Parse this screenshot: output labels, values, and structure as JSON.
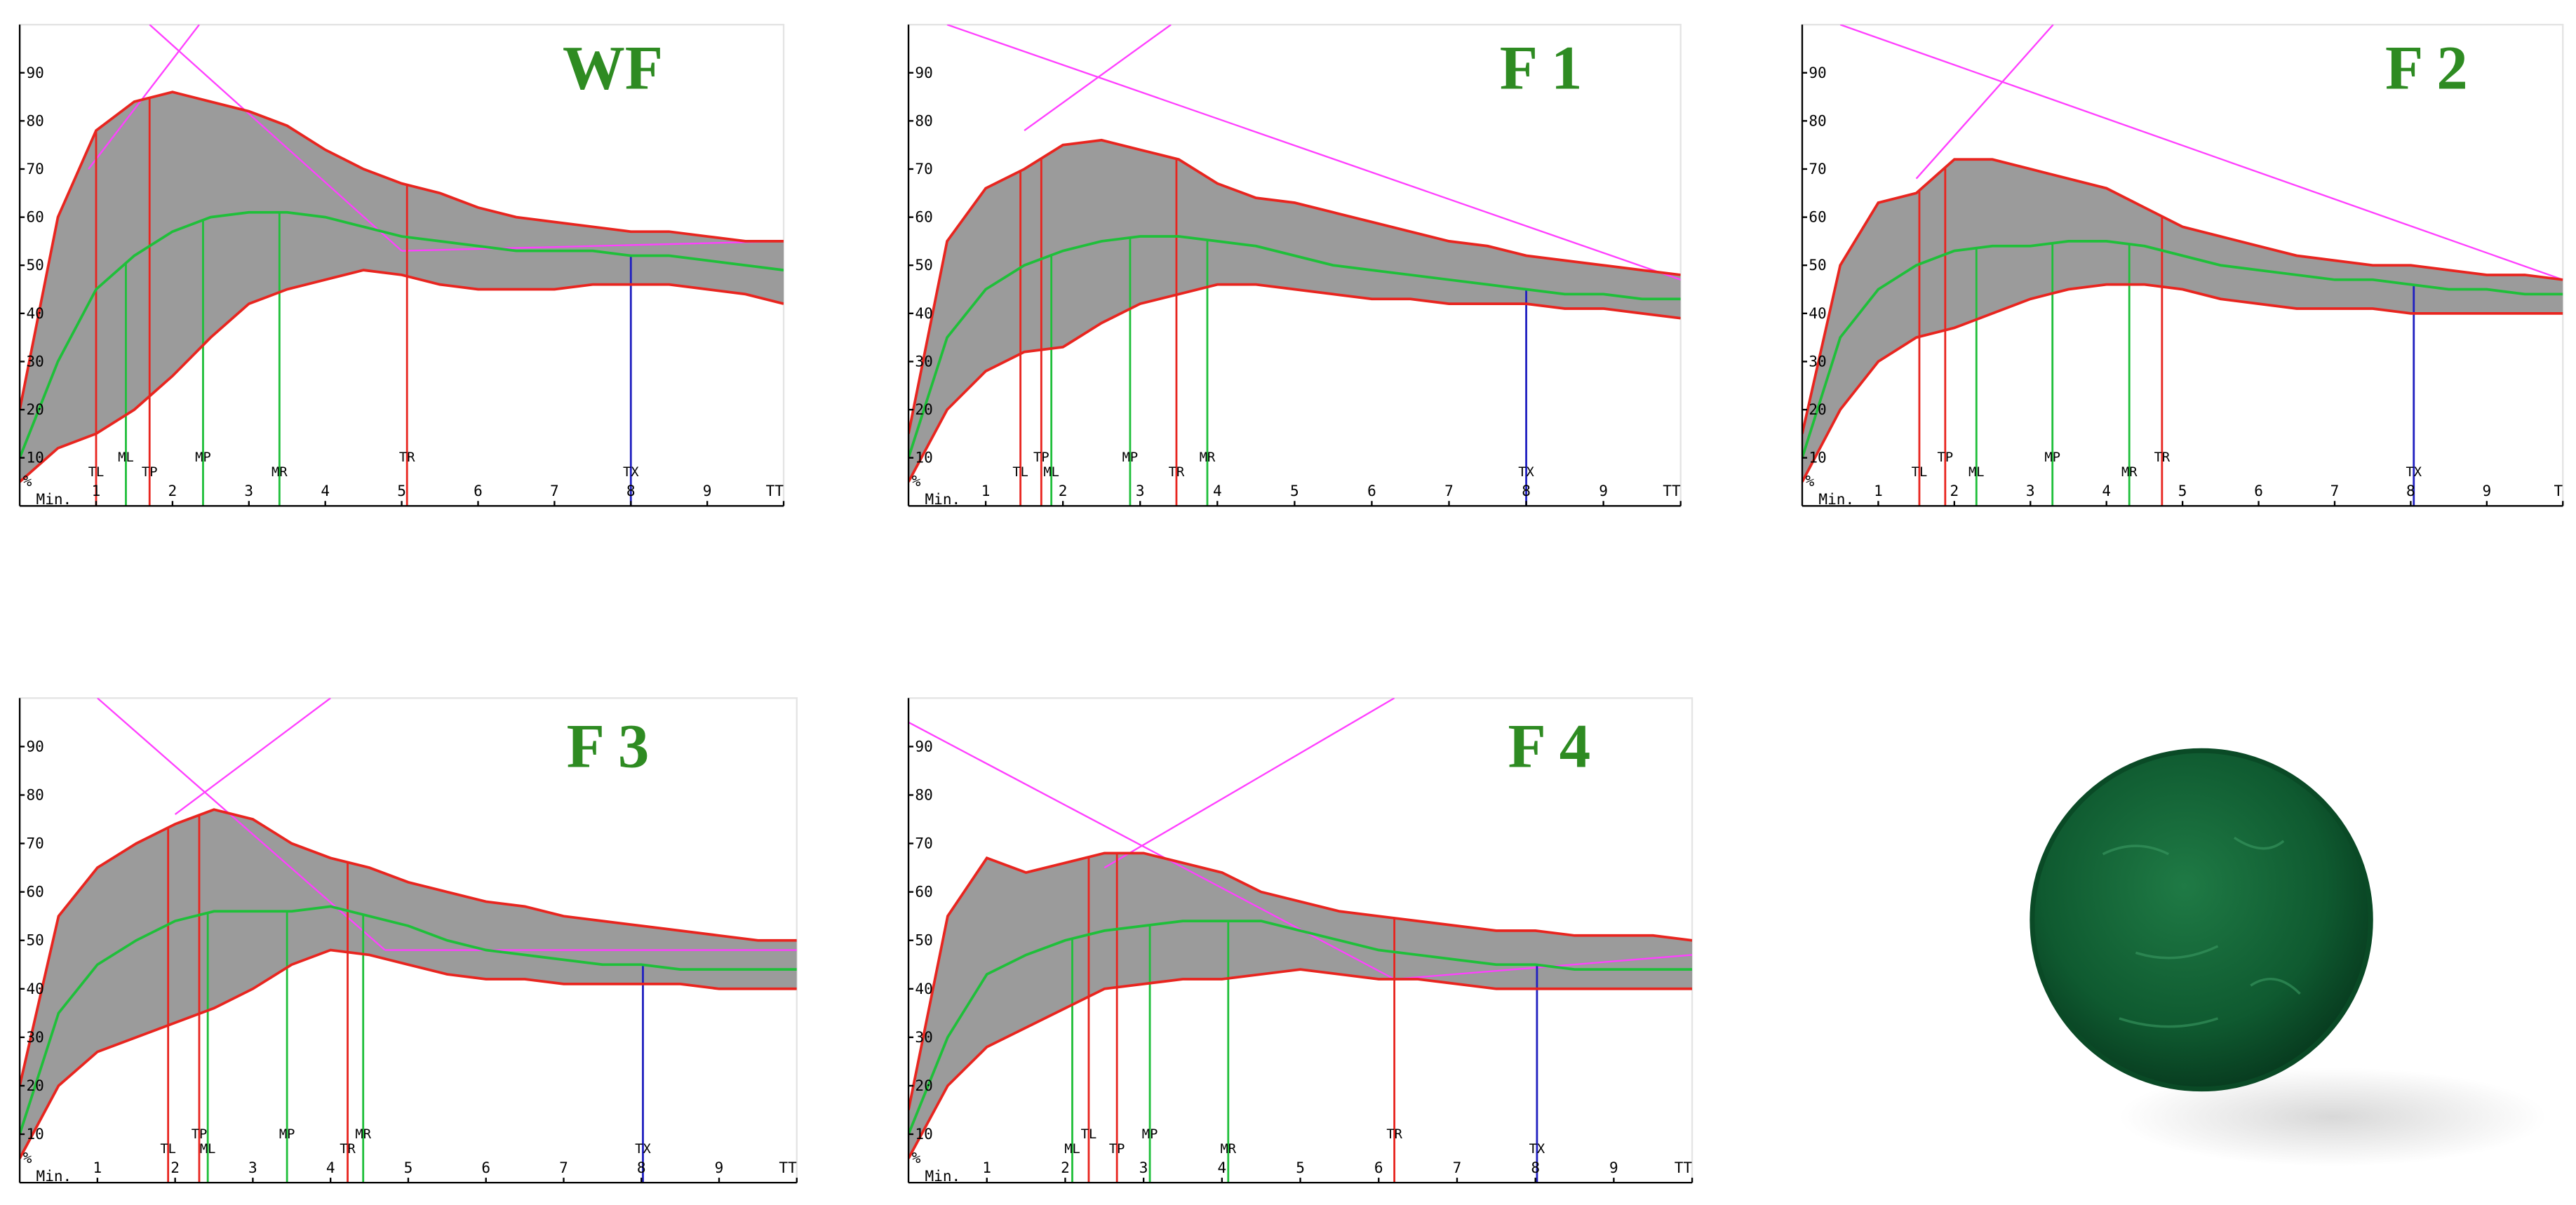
{
  "chart_data": [
    {
      "type": "line",
      "title": "WF",
      "x_label": "Min.",
      "y_label": "%",
      "xlim": [
        0,
        10
      ],
      "ylim": [
        0,
        100
      ],
      "xticks": [
        1,
        2,
        3,
        4,
        5,
        6,
        7,
        8,
        9,
        {
          "value": 10,
          "label": "TT"
        }
      ],
      "yticks": [
        10,
        20,
        30,
        40,
        50,
        60,
        70,
        80,
        90
      ],
      "x": [
        0,
        0.5,
        1,
        1.5,
        2,
        2.5,
        3,
        3.5,
        4,
        4.5,
        5,
        5.5,
        6,
        6.5,
        7,
        7.5,
        8,
        8.5,
        9,
        9.5,
        10
      ],
      "series": [
        {
          "color": "#e8251f",
          "values": [
            20,
            60,
            78,
            84,
            86,
            84,
            82,
            79,
            74,
            70,
            67,
            65,
            62,
            60,
            59,
            58,
            57,
            57,
            56,
            55,
            55
          ]
        },
        {
          "color": "#1fbf3a",
          "values": [
            10,
            30,
            45,
            52,
            57,
            60,
            61,
            61,
            60,
            58,
            56,
            55,
            54,
            53,
            53,
            53,
            52,
            52,
            51,
            50,
            49
          ]
        },
        {
          "color": "#e8251f",
          "values": [
            5,
            12,
            15,
            20,
            27,
            35,
            42,
            45,
            47,
            49,
            48,
            46,
            45,
            45,
            45,
            46,
            46,
            46,
            45,
            44,
            42
          ]
        }
      ],
      "trend_lines": [
        {
          "x": [
            1.7,
            5
          ],
          "y": [
            100,
            53
          ]
        },
        {
          "x": [
            5,
            10
          ],
          "y": [
            53,
            55
          ]
        },
        {
          "x": [
            0.9,
            2.35
          ],
          "y": [
            70,
            100
          ]
        }
      ],
      "markers": [
        {
          "label": "TL",
          "x": 1.0,
          "color": "#e8251f"
        },
        {
          "label": "ML",
          "x": 1.39,
          "color": "#1fbf3a"
        },
        {
          "label": "TP",
          "x": 1.7,
          "color": "#e8251f"
        },
        {
          "label": "MP",
          "x": 2.4,
          "color": "#1fbf3a"
        },
        {
          "label": "MR",
          "x": 3.4,
          "color": "#1fbf3a"
        },
        {
          "label": "TR",
          "x": 5.07,
          "color": "#e8251f"
        },
        {
          "label": "TX",
          "x": 8.0,
          "color": "#2020c0"
        }
      ]
    },
    {
      "type": "line",
      "title": "F 1",
      "x_label": "Min.",
      "y_label": "%",
      "xlim": [
        0,
        10
      ],
      "ylim": [
        0,
        100
      ],
      "xticks": [
        1,
        2,
        3,
        4,
        5,
        6,
        7,
        8,
        9,
        {
          "value": 10,
          "label": "TT"
        }
      ],
      "yticks": [
        10,
        20,
        30,
        40,
        50,
        60,
        70,
        80,
        90
      ],
      "x": [
        0,
        0.5,
        1,
        1.5,
        2,
        2.5,
        3,
        3.5,
        4,
        4.5,
        5,
        5.5,
        6,
        6.5,
        7,
        7.5,
        8,
        8.5,
        9,
        9.5,
        10
      ],
      "series": [
        {
          "color": "#e8251f",
          "values": [
            15,
            55,
            66,
            70,
            75,
            76,
            74,
            72,
            67,
            64,
            63,
            61,
            59,
            57,
            55,
            54,
            52,
            51,
            50,
            49,
            48
          ]
        },
        {
          "color": "#1fbf3a",
          "values": [
            10,
            35,
            45,
            50,
            53,
            55,
            56,
            56,
            55,
            54,
            52,
            50,
            49,
            48,
            47,
            46,
            45,
            44,
            44,
            43,
            43
          ]
        },
        {
          "color": "#e8251f",
          "values": [
            5,
            20,
            28,
            32,
            33,
            38,
            42,
            44,
            46,
            46,
            45,
            44,
            43,
            43,
            42,
            42,
            42,
            41,
            41,
            40,
            39
          ]
        }
      ],
      "trend_lines": [
        {
          "x": [
            0.5,
            10
          ],
          "y": [
            100,
            47
          ]
        },
        {
          "x": [
            1.5,
            3.4
          ],
          "y": [
            78,
            100
          ]
        }
      ],
      "markers": [
        {
          "label": "TL",
          "x": 1.45,
          "color": "#e8251f"
        },
        {
          "label": "TP",
          "x": 1.72,
          "color": "#e8251f"
        },
        {
          "label": "ML",
          "x": 1.85,
          "color": "#1fbf3a"
        },
        {
          "label": "MP",
          "x": 2.87,
          "color": "#1fbf3a"
        },
        {
          "label": "TR",
          "x": 3.47,
          "color": "#e8251f"
        },
        {
          "label": "MR",
          "x": 3.87,
          "color": "#1fbf3a"
        },
        {
          "label": "TX",
          "x": 8.0,
          "color": "#2020c0"
        }
      ]
    },
    {
      "type": "line",
      "title": "F 2",
      "x_label": "Min.",
      "y_label": "%",
      "xlim": [
        0,
        10
      ],
      "ylim": [
        0,
        100
      ],
      "xticks": [
        1,
        2,
        3,
        4,
        5,
        6,
        7,
        8,
        9,
        {
          "value": 10,
          "label": "T"
        }
      ],
      "yticks": [
        10,
        20,
        30,
        40,
        50,
        60,
        70,
        80,
        90
      ],
      "x": [
        0,
        0.5,
        1,
        1.5,
        2,
        2.5,
        3,
        3.5,
        4,
        4.5,
        5,
        5.5,
        6,
        6.5,
        7,
        7.5,
        8,
        8.5,
        9,
        9.5,
        10
      ],
      "series": [
        {
          "color": "#e8251f",
          "values": [
            15,
            50,
            63,
            65,
            72,
            72,
            70,
            68,
            66,
            62,
            58,
            56,
            54,
            52,
            51,
            50,
            50,
            49,
            48,
            48,
            47
          ]
        },
        {
          "color": "#1fbf3a",
          "values": [
            10,
            35,
            45,
            50,
            53,
            54,
            54,
            55,
            55,
            54,
            52,
            50,
            49,
            48,
            47,
            47,
            46,
            45,
            45,
            44,
            44
          ]
        },
        {
          "color": "#e8251f",
          "values": [
            5,
            20,
            30,
            35,
            37,
            40,
            43,
            45,
            46,
            46,
            45,
            43,
            42,
            41,
            41,
            41,
            40,
            40,
            40,
            40,
            40
          ]
        }
      ],
      "trend_lines": [
        {
          "x": [
            0.5,
            10
          ],
          "y": [
            100,
            47
          ]
        },
        {
          "x": [
            1.5,
            3.3
          ],
          "y": [
            68,
            100
          ]
        }
      ],
      "markers": [
        {
          "label": "TL",
          "x": 1.54,
          "color": "#e8251f"
        },
        {
          "label": "TP",
          "x": 1.88,
          "color": "#e8251f"
        },
        {
          "label": "ML",
          "x": 2.29,
          "color": "#1fbf3a"
        },
        {
          "label": "MP",
          "x": 3.29,
          "color": "#1fbf3a"
        },
        {
          "label": "MR",
          "x": 4.3,
          "color": "#1fbf3a"
        },
        {
          "label": "TR",
          "x": 4.73,
          "color": "#e8251f"
        },
        {
          "label": "TX",
          "x": 8.04,
          "color": "#2020c0"
        }
      ]
    },
    {
      "type": "line",
      "title": "F 3",
      "x_label": "Min.",
      "y_label": "%",
      "xlim": [
        0,
        10
      ],
      "ylim": [
        0,
        100
      ],
      "xticks": [
        1,
        2,
        3,
        4,
        5,
        6,
        7,
        8,
        9,
        {
          "value": 10,
          "label": "TT"
        }
      ],
      "yticks": [
        10,
        20,
        30,
        40,
        50,
        60,
        70,
        80,
        90
      ],
      "x": [
        0,
        0.5,
        1,
        1.5,
        2,
        2.5,
        3,
        3.5,
        4,
        4.5,
        5,
        5.5,
        6,
        6.5,
        7,
        7.5,
        8,
        8.5,
        9,
        9.5,
        10
      ],
      "series": [
        {
          "color": "#e8251f",
          "values": [
            20,
            55,
            65,
            70,
            74,
            77,
            75,
            70,
            67,
            65,
            62,
            60,
            58,
            57,
            55,
            54,
            53,
            52,
            51,
            50,
            50
          ]
        },
        {
          "color": "#1fbf3a",
          "values": [
            10,
            35,
            45,
            50,
            54,
            56,
            56,
            56,
            57,
            55,
            53,
            50,
            48,
            47,
            46,
            45,
            45,
            44,
            44,
            44,
            44
          ]
        },
        {
          "color": "#e8251f",
          "values": [
            5,
            20,
            27,
            30,
            33,
            36,
            40,
            45,
            48,
            47,
            45,
            43,
            42,
            42,
            41,
            41,
            41,
            41,
            40,
            40,
            40
          ]
        }
      ],
      "trend_lines": [
        {
          "x": [
            1,
            4.7
          ],
          "y": [
            100,
            48
          ]
        },
        {
          "x": [
            4.7,
            10
          ],
          "y": [
            48,
            48
          ]
        },
        {
          "x": [
            2,
            4
          ],
          "y": [
            76,
            100
          ]
        }
      ],
      "markers": [
        {
          "label": "TL",
          "x": 1.91,
          "color": "#e8251f"
        },
        {
          "label": "TP",
          "x": 2.31,
          "color": "#e8251f"
        },
        {
          "label": "ML",
          "x": 2.42,
          "color": "#1fbf3a"
        },
        {
          "label": "MP",
          "x": 3.44,
          "color": "#1fbf3a"
        },
        {
          "label": "TR",
          "x": 4.22,
          "color": "#e8251f"
        },
        {
          "label": "MR",
          "x": 4.42,
          "color": "#1fbf3a"
        },
        {
          "label": "TX",
          "x": 8.02,
          "color": "#2020c0"
        }
      ]
    },
    {
      "type": "line",
      "title": "F 4",
      "x_label": "Min.",
      "y_label": "%",
      "xlim": [
        0,
        10
      ],
      "ylim": [
        0,
        100
      ],
      "xticks": [
        1,
        2,
        3,
        4,
        5,
        6,
        7,
        8,
        9,
        {
          "value": 10,
          "label": "TT"
        }
      ],
      "yticks": [
        10,
        20,
        30,
        40,
        50,
        60,
        70,
        80,
        90
      ],
      "x": [
        0,
        0.5,
        1,
        1.5,
        2,
        2.5,
        3,
        3.5,
        4,
        4.5,
        5,
        5.5,
        6,
        6.5,
        7,
        7.5,
        8,
        8.5,
        9,
        9.5,
        10
      ],
      "series": [
        {
          "color": "#e8251f",
          "values": [
            15,
            55,
            67,
            64,
            66,
            68,
            68,
            66,
            64,
            60,
            58,
            56,
            55,
            54,
            53,
            52,
            52,
            51,
            51,
            51,
            50
          ]
        },
        {
          "color": "#1fbf3a",
          "values": [
            10,
            30,
            43,
            47,
            50,
            52,
            53,
            54,
            54,
            54,
            52,
            50,
            48,
            47,
            46,
            45,
            45,
            44,
            44,
            44,
            44
          ]
        },
        {
          "color": "#e8251f",
          "values": [
            5,
            20,
            28,
            32,
            36,
            40,
            41,
            42,
            42,
            43,
            44,
            43,
            42,
            42,
            41,
            40,
            40,
            40,
            40,
            40,
            40
          ]
        }
      ],
      "trend_lines": [
        {
          "x": [
            0,
            6.2
          ],
          "y": [
            95,
            42
          ]
        },
        {
          "x": [
            6.2,
            10
          ],
          "y": [
            42,
            47
          ]
        },
        {
          "x": [
            2.5,
            6.2
          ],
          "y": [
            65,
            100
          ]
        }
      ],
      "markers": [
        {
          "label": "ML",
          "x": 2.09,
          "color": "#1fbf3a"
        },
        {
          "label": "TL",
          "x": 2.3,
          "color": "#e8251f"
        },
        {
          "label": "TP",
          "x": 2.66,
          "color": "#e8251f"
        },
        {
          "label": "MP",
          "x": 3.08,
          "color": "#1fbf3a"
        },
        {
          "label": "MR",
          "x": 4.08,
          "color": "#1fbf3a"
        },
        {
          "label": "TR",
          "x": 6.2,
          "color": "#e8251f"
        },
        {
          "label": "TX",
          "x": 8.02,
          "color": "#2020c0"
        }
      ]
    }
  ]
}
